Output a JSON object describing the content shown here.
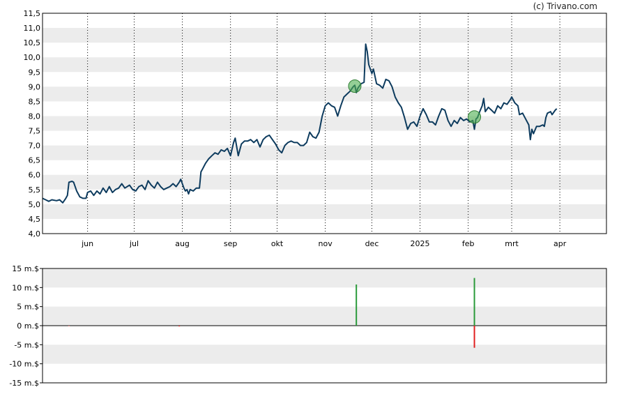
{
  "credit": "(c) Trivano.com",
  "colors": {
    "band": "#ececec",
    "price_line": "#0d3b5e",
    "signal_fill": "#4caf50",
    "signal_stroke": "#2e7d32",
    "bar_positive": "#2a9a3a",
    "bar_negative": "#e02020"
  },
  "chart_data": [
    {
      "type": "line",
      "ylim": [
        4.0,
        11.5
      ],
      "y_ticks": [
        "4,0",
        "4,5",
        "5,0",
        "5,5",
        "6,0",
        "6,5",
        "7,0",
        "7,5",
        "8,0",
        "8,5",
        "9,0",
        "9,5",
        "10,0",
        "10,5",
        "11,0",
        "11,5"
      ],
      "x_ticks": [
        {
          "label": "jun",
          "day": 29
        },
        {
          "label": "jul",
          "day": 59
        },
        {
          "label": "aug",
          "day": 90
        },
        {
          "label": "sep",
          "day": 121
        },
        {
          "label": "okt",
          "day": 151
        },
        {
          "label": "nov",
          "day": 182
        },
        {
          "label": "dec",
          "day": 212
        },
        {
          "label": "2025",
          "day": 243
        },
        {
          "label": "feb",
          "day": 274
        },
        {
          "label": "mrt",
          "day": 302
        },
        {
          "label": "apr",
          "day": 333
        }
      ],
      "x_range_days": [
        0,
        363
      ],
      "grid": "dotted vertical at month ticks, alternating horizontal bands",
      "series": [
        {
          "points": [
            [
              0,
              5.2
            ],
            [
              2,
              5.15
            ],
            [
              4,
              5.1
            ],
            [
              6,
              5.15
            ],
            [
              9,
              5.12
            ],
            [
              11,
              5.15
            ],
            [
              13,
              5.05
            ],
            [
              15,
              5.2
            ],
            [
              16,
              5.3
            ],
            [
              17,
              5.75
            ],
            [
              19,
              5.78
            ],
            [
              20,
              5.75
            ],
            [
              21,
              5.6
            ],
            [
              22,
              5.45
            ],
            [
              24,
              5.25
            ],
            [
              26,
              5.2
            ],
            [
              28,
              5.2
            ],
            [
              29,
              5.4
            ],
            [
              31,
              5.45
            ],
            [
              33,
              5.3
            ],
            [
              35,
              5.45
            ],
            [
              37,
              5.35
            ],
            [
              39,
              5.55
            ],
            [
              41,
              5.4
            ],
            [
              43,
              5.6
            ],
            [
              45,
              5.4
            ],
            [
              47,
              5.5
            ],
            [
              49,
              5.55
            ],
            [
              51,
              5.7
            ],
            [
              53,
              5.55
            ],
            [
              56,
              5.65
            ],
            [
              58,
              5.5
            ],
            [
              60,
              5.45
            ],
            [
              62,
              5.6
            ],
            [
              64,
              5.65
            ],
            [
              66,
              5.5
            ],
            [
              68,
              5.8
            ],
            [
              70,
              5.65
            ],
            [
              72,
              5.55
            ],
            [
              74,
              5.75
            ],
            [
              76,
              5.6
            ],
            [
              78,
              5.5
            ],
            [
              80,
              5.55
            ],
            [
              82,
              5.6
            ],
            [
              84,
              5.7
            ],
            [
              86,
              5.6
            ],
            [
              88,
              5.75
            ],
            [
              89,
              5.85
            ],
            [
              91,
              5.55
            ],
            [
              92,
              5.45
            ],
            [
              93,
              5.5
            ],
            [
              94,
              5.35
            ],
            [
              95,
              5.5
            ],
            [
              97,
              5.45
            ],
            [
              99,
              5.55
            ],
            [
              101,
              5.55
            ],
            [
              102,
              6.1
            ],
            [
              103,
              6.2
            ],
            [
              105,
              6.4
            ],
            [
              107,
              6.55
            ],
            [
              109,
              6.65
            ],
            [
              111,
              6.75
            ],
            [
              113,
              6.7
            ],
            [
              115,
              6.85
            ],
            [
              117,
              6.8
            ],
            [
              119,
              6.9
            ],
            [
              121,
              6.65
            ],
            [
              123,
              7.1
            ],
            [
              124,
              7.25
            ],
            [
              125,
              6.95
            ],
            [
              126,
              6.65
            ],
            [
              128,
              7.05
            ],
            [
              130,
              7.15
            ],
            [
              132,
              7.15
            ],
            [
              134,
              7.2
            ],
            [
              136,
              7.1
            ],
            [
              138,
              7.2
            ],
            [
              140,
              6.95
            ],
            [
              142,
              7.2
            ],
            [
              144,
              7.3
            ],
            [
              146,
              7.35
            ],
            [
              148,
              7.2
            ],
            [
              150,
              7.05
            ],
            [
              152,
              6.85
            ],
            [
              154,
              6.75
            ],
            [
              156,
              7.0
            ],
            [
              158,
              7.1
            ],
            [
              160,
              7.15
            ],
            [
              162,
              7.1
            ],
            [
              164,
              7.1
            ],
            [
              166,
              7.0
            ],
            [
              168,
              7.0
            ],
            [
              170,
              7.1
            ],
            [
              172,
              7.45
            ],
            [
              174,
              7.3
            ],
            [
              176,
              7.25
            ],
            [
              178,
              7.45
            ],
            [
              180,
              8.0
            ],
            [
              182,
              8.35
            ],
            [
              184,
              8.45
            ],
            [
              186,
              8.35
            ],
            [
              188,
              8.3
            ],
            [
              189,
              8.15
            ],
            [
              190,
              8.0
            ],
            [
              192,
              8.35
            ],
            [
              194,
              8.65
            ],
            [
              196,
              8.75
            ],
            [
              198,
              8.85
            ],
            [
              200,
              9.0
            ],
            [
              201,
              9.05
            ],
            [
              202,
              8.8
            ],
            [
              203,
              8.95
            ],
            [
              205,
              9.1
            ],
            [
              207,
              9.15
            ],
            [
              208,
              10.45
            ],
            [
              209,
              10.2
            ],
            [
              210,
              9.75
            ],
            [
              212,
              9.45
            ],
            [
              213,
              9.6
            ],
            [
              215,
              9.1
            ],
            [
              217,
              9.05
            ],
            [
              219,
              8.95
            ],
            [
              221,
              9.25
            ],
            [
              223,
              9.2
            ],
            [
              225,
              9.0
            ],
            [
              227,
              8.65
            ],
            [
              229,
              8.45
            ],
            [
              231,
              8.3
            ],
            [
              233,
              7.95
            ],
            [
              235,
              7.55
            ],
            [
              237,
              7.75
            ],
            [
              239,
              7.8
            ],
            [
              241,
              7.65
            ],
            [
              243,
              8.0
            ],
            [
              245,
              8.25
            ],
            [
              247,
              8.05
            ],
            [
              249,
              7.8
            ],
            [
              251,
              7.8
            ],
            [
              253,
              7.7
            ],
            [
              255,
              8.0
            ],
            [
              257,
              8.25
            ],
            [
              259,
              8.2
            ],
            [
              261,
              7.85
            ],
            [
              263,
              7.65
            ],
            [
              265,
              7.85
            ],
            [
              267,
              7.75
            ],
            [
              269,
              7.95
            ],
            [
              271,
              7.85
            ],
            [
              273,
              7.9
            ],
            [
              275,
              7.8
            ],
            [
              277,
              7.85
            ],
            [
              278,
              7.55
            ],
            [
              279,
              7.9
            ],
            [
              280,
              7.95
            ],
            [
              281,
              8.1
            ],
            [
              283,
              8.35
            ],
            [
              284,
              8.6
            ],
            [
              285,
              8.15
            ],
            [
              287,
              8.3
            ],
            [
              289,
              8.2
            ],
            [
              291,
              8.1
            ],
            [
              293,
              8.35
            ],
            [
              295,
              8.25
            ],
            [
              297,
              8.45
            ],
            [
              299,
              8.4
            ],
            [
              301,
              8.55
            ],
            [
              302,
              8.65
            ],
            [
              304,
              8.45
            ],
            [
              306,
              8.35
            ],
            [
              307,
              8.05
            ],
            [
              309,
              8.1
            ],
            [
              311,
              7.9
            ],
            [
              313,
              7.7
            ],
            [
              314,
              7.2
            ],
            [
              315,
              7.55
            ],
            [
              316,
              7.4
            ],
            [
              318,
              7.65
            ],
            [
              320,
              7.65
            ],
            [
              322,
              7.7
            ],
            [
              323,
              7.65
            ],
            [
              324,
              7.95
            ],
            [
              325,
              8.1
            ],
            [
              327,
              8.15
            ],
            [
              328,
              8.05
            ],
            [
              330,
              8.2
            ],
            [
              331,
              8.25
            ]
          ]
        }
      ],
      "signals": [
        {
          "day": 201,
          "value": 9.02
        },
        {
          "day": 278,
          "value": 7.97
        }
      ]
    },
    {
      "type": "bar",
      "ylim": [
        -15,
        15
      ],
      "y_ticks": [
        "15 m.$",
        "10 m.$",
        "5 m.$",
        "0 m.$",
        "-5 m.$",
        "-10 m.$",
        "-15 m.$"
      ],
      "bars": [
        {
          "day": 17,
          "value": -0.1
        },
        {
          "day": 88,
          "value": -0.2
        },
        {
          "day": 202,
          "value": 10.8
        },
        {
          "day": 278,
          "value": 12.5
        },
        {
          "day": 278,
          "value": -5.8
        }
      ]
    }
  ]
}
